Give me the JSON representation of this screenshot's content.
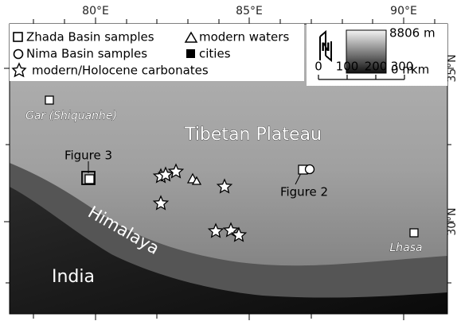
{
  "axes": {
    "top": [
      "80°E",
      "85°E",
      "90°E"
    ],
    "right": [
      "35°N",
      "30°N"
    ]
  },
  "legend": {
    "items": [
      "Zhada Basin samples",
      "modern waters",
      "Nima Basin samples",
      "cities",
      "modern/Holocene carbonates"
    ]
  },
  "elevation_scale": {
    "max": "8806 m",
    "min": "0 m"
  },
  "north_arrow": "N",
  "scale_bar": {
    "ticks": [
      "0",
      "100",
      "200",
      "300"
    ],
    "unit": "km"
  },
  "labels": {
    "gar": "Gar (Shiquanhe)",
    "plateau": "Tibetan Plateau",
    "figure3": "Figure 3",
    "figure2": "Figure 2",
    "himalaya": "Himalaya",
    "india": "India",
    "lhasa": "Lhasa"
  }
}
